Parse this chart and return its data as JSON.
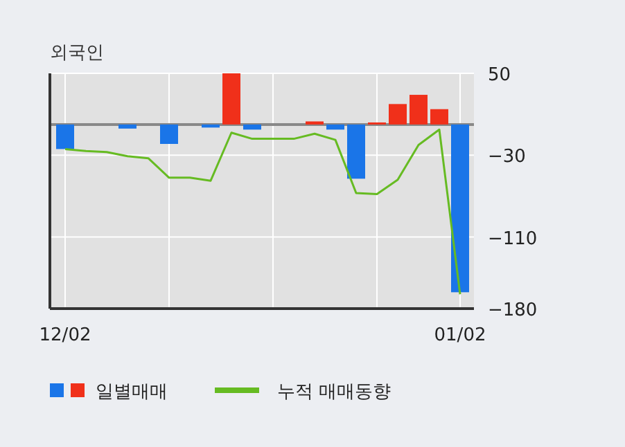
{
  "chart_data": {
    "type": "bar",
    "title": "외국인",
    "categories": [
      "12/02",
      null,
      null,
      null,
      null,
      null,
      null,
      null,
      null,
      null,
      null,
      null,
      null,
      null,
      null,
      null,
      null,
      null,
      null,
      "01/02"
    ],
    "series": [
      {
        "name": "일별매매",
        "values": [
          -24,
          0,
          0,
          -4,
          0,
          -19,
          0,
          -3,
          50,
          -5,
          0,
          0,
          3,
          -5,
          -53,
          2,
          20,
          29,
          15,
          -164
        ],
        "colors": [
          "#1a75e8",
          "#1a75e8",
          "#1a75e8",
          "#1a75e8",
          "#1a75e8",
          "#1a75e8",
          "#1a75e8",
          "#1a75e8",
          "#f0301a",
          "#1a75e8",
          "#1a75e8",
          "#1a75e8",
          "#f0301a",
          "#1a75e8",
          "#1a75e8",
          "#f0301a",
          "#f0301a",
          "#f0301a",
          "#f0301a",
          "#1a75e8"
        ]
      },
      {
        "name": "누적 매매동향",
        "type": "line",
        "color": "#66bb22",
        "values": [
          -24,
          -26,
          -27,
          -31,
          -33,
          -52,
          -52,
          -55,
          -8,
          -14,
          -14,
          -14,
          -9,
          -15,
          -67,
          -68,
          -54,
          -20,
          -5,
          -166
        ]
      }
    ],
    "ylim": [
      -180,
      50
    ],
    "yticks": [
      50,
      -30,
      -110,
      -180
    ],
    "grid": true,
    "legend": "bottom"
  }
}
